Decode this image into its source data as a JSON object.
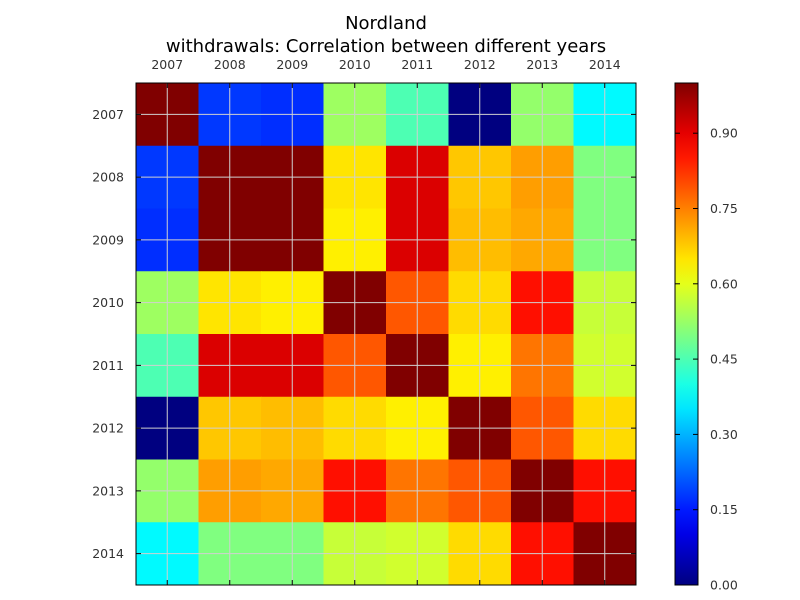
{
  "chart_data": {
    "type": "heatmap",
    "title": "Nordland",
    "subtitle": "withdrawals: Correlation between different years",
    "x_categories": [
      "2007",
      "2008",
      "2009",
      "2010",
      "2011",
      "2012",
      "2013",
      "2014"
    ],
    "y_categories": [
      "2007",
      "2008",
      "2009",
      "2010",
      "2011",
      "2012",
      "2013",
      "2014"
    ],
    "values": [
      [
        1.0,
        0.18,
        0.17,
        0.53,
        0.45,
        0.0,
        0.52,
        0.37
      ],
      [
        0.18,
        1.0,
        1.0,
        0.65,
        0.91,
        0.68,
        0.72,
        0.5
      ],
      [
        0.17,
        1.0,
        1.0,
        0.64,
        0.91,
        0.69,
        0.71,
        0.5
      ],
      [
        0.53,
        0.65,
        0.64,
        1.0,
        0.79,
        0.66,
        0.86,
        0.57
      ],
      [
        0.45,
        0.91,
        0.91,
        0.79,
        1.0,
        0.64,
        0.76,
        0.58
      ],
      [
        0.0,
        0.68,
        0.69,
        0.66,
        0.64,
        1.0,
        0.79,
        0.66
      ],
      [
        0.52,
        0.72,
        0.71,
        0.86,
        0.76,
        0.79,
        1.0,
        0.86
      ],
      [
        0.37,
        0.5,
        0.5,
        0.57,
        0.58,
        0.66,
        0.86,
        1.0
      ]
    ],
    "colorbar": {
      "colormap": "jet",
      "min": 0.0,
      "max": 1.0,
      "ticks": [
        "0.00",
        "0.15",
        "0.30",
        "0.45",
        "0.60",
        "0.75",
        "0.90"
      ]
    },
    "grid": true,
    "x_axis_position": "top"
  }
}
